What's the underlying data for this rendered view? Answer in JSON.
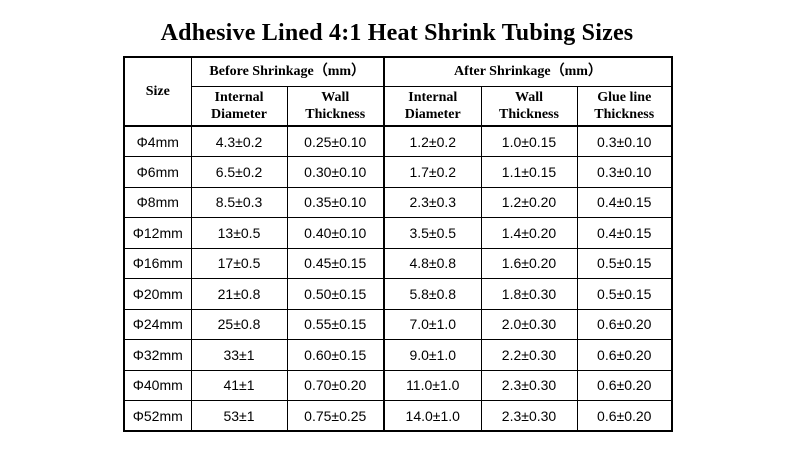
{
  "title": "Adhesive Lined 4:1 Heat Shrink Tubing Sizes",
  "table": {
    "size_header": "Size",
    "before_group": "Before Shrinkage（mm）",
    "after_group": "After Shrinkage（mm）",
    "sub_headers": {
      "before_internal": [
        "Internal",
        "Diameter"
      ],
      "before_wall": [
        "Wall",
        "Thickness"
      ],
      "after_internal": [
        "Internal",
        "Diameter"
      ],
      "after_wall": [
        "Wall",
        "Thickness"
      ],
      "after_glue": [
        "Glue line",
        "Thickness"
      ]
    },
    "rows": [
      {
        "size": "Φ4mm",
        "before_id": "4.3±0.2",
        "before_wall": "0.25±0.10",
        "after_id": "1.2±0.2",
        "after_wall": "1.0±0.15",
        "glue": "0.3±0.10"
      },
      {
        "size": "Φ6mm",
        "before_id": "6.5±0.2",
        "before_wall": "0.30±0.10",
        "after_id": "1.7±0.2",
        "after_wall": "1.1±0.15",
        "glue": "0.3±0.10"
      },
      {
        "size": "Φ8mm",
        "before_id": "8.5±0.3",
        "before_wall": "0.35±0.10",
        "after_id": "2.3±0.3",
        "after_wall": "1.2±0.20",
        "glue": "0.4±0.15"
      },
      {
        "size": "Φ12mm",
        "before_id": "13±0.5",
        "before_wall": "0.40±0.10",
        "after_id": "3.5±0.5",
        "after_wall": "1.4±0.20",
        "glue": "0.4±0.15"
      },
      {
        "size": "Φ16mm",
        "before_id": "17±0.5",
        "before_wall": "0.45±0.15",
        "after_id": "4.8±0.8",
        "after_wall": "1.6±0.20",
        "glue": "0.5±0.15"
      },
      {
        "size": "Φ20mm",
        "before_id": "21±0.8",
        "before_wall": "0.50±0.15",
        "after_id": "5.8±0.8",
        "after_wall": "1.8±0.30",
        "glue": "0.5±0.15"
      },
      {
        "size": "Φ24mm",
        "before_id": "25±0.8",
        "before_wall": "0.55±0.15",
        "after_id": "7.0±1.0",
        "after_wall": "2.0±0.30",
        "glue": "0.6±0.20"
      },
      {
        "size": "Φ32mm",
        "before_id": "33±1",
        "before_wall": "0.60±0.15",
        "after_id": "9.0±1.0",
        "after_wall": "2.2±0.30",
        "glue": "0.6±0.20"
      },
      {
        "size": "Φ40mm",
        "before_id": "41±1",
        "before_wall": "0.70±0.20",
        "after_id": "11.0±1.0",
        "after_wall": "2.3±0.30",
        "glue": "0.6±0.20"
      },
      {
        "size": "Φ52mm",
        "before_id": "53±1",
        "before_wall": "0.75±0.25",
        "after_id": "14.0±1.0",
        "after_wall": "2.3±0.30",
        "glue": "0.6±0.20"
      }
    ]
  }
}
